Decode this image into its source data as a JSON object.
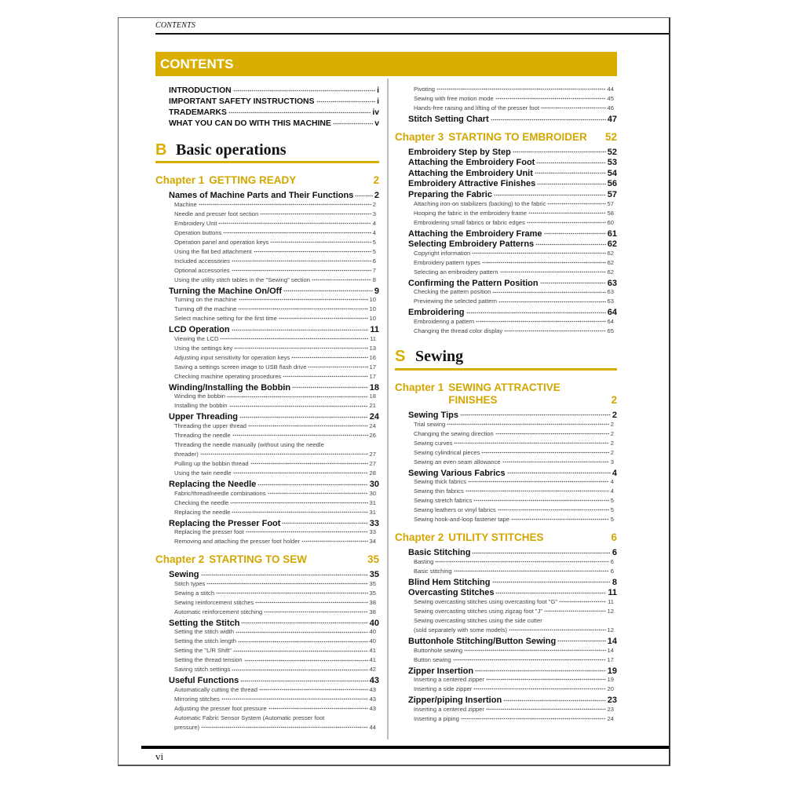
{
  "running_header": "CONTENTS",
  "banner_title": "CONTENTS",
  "folio": "vi",
  "colors": {
    "accent": "#d9ae00",
    "chapter": "#d4a600",
    "text": "#111111"
  },
  "left_column": [
    {
      "type": "front",
      "text": "INTRODUCTION",
      "page": "i"
    },
    {
      "type": "front",
      "text": "IMPORTANT SAFETY INSTRUCTIONS",
      "page": "i"
    },
    {
      "type": "front",
      "text": "TRADEMARKS",
      "page": "iv"
    },
    {
      "type": "front",
      "text": "WHAT YOU CAN DO WITH THIS MACHINE",
      "page": "v"
    },
    {
      "type": "section",
      "letter": "B",
      "title": "Basic operations"
    },
    {
      "type": "chapter",
      "label": "Chapter 1",
      "title": [
        "GETTING READY"
      ],
      "page": "2"
    },
    {
      "type": "main",
      "text": "Names of Machine Parts and Their Functions",
      "page": "2"
    },
    {
      "type": "sub",
      "text": "Machine",
      "page": "2"
    },
    {
      "type": "sub",
      "text": "Needle and presser foot section",
      "page": "3"
    },
    {
      "type": "sub",
      "text": "Embroidery Unit",
      "page": "4"
    },
    {
      "type": "sub",
      "text": "Operation buttons",
      "page": "4"
    },
    {
      "type": "sub",
      "text": "Operation panel and operation keys",
      "page": "5"
    },
    {
      "type": "sub",
      "text": "Using the flat bed attachment",
      "page": "5"
    },
    {
      "type": "sub",
      "text": "Included accessories",
      "page": "6"
    },
    {
      "type": "sub",
      "text": "Optional accessories",
      "page": "7"
    },
    {
      "type": "sub",
      "text": "Using the utility stitch tables in the \"Sewing\" section",
      "page": "8"
    },
    {
      "type": "main",
      "text": "Turning the Machine On/Off",
      "page": "9"
    },
    {
      "type": "sub",
      "text": "Turning on the machine",
      "page": "10"
    },
    {
      "type": "sub",
      "text": "Turning off the machine",
      "page": "10"
    },
    {
      "type": "sub",
      "text": "Select machine setting for the first time",
      "page": "10"
    },
    {
      "type": "main",
      "text": "LCD Operation",
      "page": "11"
    },
    {
      "type": "sub",
      "text": "Viewing the LCD",
      "page": "11"
    },
    {
      "type": "sub",
      "text": "Using the settings key",
      "page": "13"
    },
    {
      "type": "sub",
      "text": "Adjusting input sensitivity for operation keys",
      "page": "16"
    },
    {
      "type": "sub",
      "text": "Saving a settings screen image to USB flash drive",
      "page": "17"
    },
    {
      "type": "sub",
      "text": "Checking machine operating procedures",
      "page": "17"
    },
    {
      "type": "main",
      "text": "Winding/Installing the Bobbin",
      "page": "18"
    },
    {
      "type": "sub",
      "text": "Winding the bobbin",
      "page": "18"
    },
    {
      "type": "sub",
      "text": "Installing the bobbin",
      "page": "21"
    },
    {
      "type": "main",
      "text": "Upper Threading",
      "page": "24"
    },
    {
      "type": "sub",
      "text": "Threading the upper thread",
      "page": "24"
    },
    {
      "type": "sub",
      "text": "Threading the needle",
      "page": "26"
    },
    {
      "type": "sub",
      "text": "Threading the needle manually (without using the needle",
      "cont": "threader)",
      "page": "27"
    },
    {
      "type": "sub",
      "text": "Pulling up the bobbin thread",
      "page": "27"
    },
    {
      "type": "sub",
      "text": "Using the twin needle",
      "page": "28"
    },
    {
      "type": "main",
      "text": "Replacing the Needle",
      "page": "30"
    },
    {
      "type": "sub",
      "text": "Fabric/thread/needle combinations",
      "page": "30"
    },
    {
      "type": "sub",
      "text": "Checking the needle",
      "page": "31"
    },
    {
      "type": "sub",
      "text": "Replacing the needle",
      "page": "31"
    },
    {
      "type": "main",
      "text": "Replacing the Presser Foot",
      "page": "33"
    },
    {
      "type": "sub",
      "text": "Replacing the presser foot",
      "page": "33"
    },
    {
      "type": "sub",
      "text": "Removing and attaching the presser foot holder",
      "page": "34"
    },
    {
      "type": "chapter",
      "label": "Chapter 2",
      "title": [
        "STARTING TO SEW"
      ],
      "page": "35"
    },
    {
      "type": "main",
      "text": "Sewing",
      "page": "35"
    },
    {
      "type": "sub",
      "text": "Stitch types",
      "page": "35"
    },
    {
      "type": "sub",
      "text": "Sewing a stitch",
      "page": "35"
    },
    {
      "type": "sub",
      "text": "Sewing reinforcement stitches",
      "page": "38"
    },
    {
      "type": "sub",
      "text": "Automatic reinforcement stitching",
      "page": "38"
    },
    {
      "type": "main",
      "text": "Setting the Stitch",
      "page": "40"
    },
    {
      "type": "sub",
      "text": "Setting the stitch width",
      "page": "40"
    },
    {
      "type": "sub",
      "text": "Setting the stitch length",
      "page": "40"
    },
    {
      "type": "sub",
      "text": "Setting the \"L/R Shift\"",
      "page": "41"
    },
    {
      "type": "sub",
      "text": "Setting the thread tension",
      "page": "41"
    },
    {
      "type": "sub",
      "text": "Saving stitch settings",
      "page": "42"
    },
    {
      "type": "main",
      "text": "Useful Functions",
      "page": "43"
    },
    {
      "type": "sub",
      "text": "Automatically cutting the thread",
      "page": "43"
    },
    {
      "type": "sub",
      "text": "Mirroring stitches",
      "page": "43"
    },
    {
      "type": "sub",
      "text": "Adjusting the presser foot pressure",
      "page": "43"
    },
    {
      "type": "sub",
      "text": "Automatic Fabric Sensor System (Automatic presser foot",
      "cont": "pressure)",
      "page": "44"
    }
  ],
  "right_column": [
    {
      "type": "sub",
      "text": "Pivoting",
      "page": "44"
    },
    {
      "type": "sub",
      "text": "Sewing with free motion mode",
      "page": "45"
    },
    {
      "type": "sub",
      "text": "Hands-free raising and lifting of the presser foot",
      "page": "46"
    },
    {
      "type": "main",
      "text": "Stitch Setting Chart",
      "page": "47"
    },
    {
      "type": "chapter",
      "label": "Chapter 3",
      "title": [
        "STARTING TO EMBROIDER"
      ],
      "page": "52"
    },
    {
      "type": "main",
      "text": "Embroidery Step by Step",
      "page": "52"
    },
    {
      "type": "main",
      "text": "Attaching the Embroidery Foot",
      "page": "53"
    },
    {
      "type": "main",
      "text": "Attaching the Embroidery Unit",
      "page": "54"
    },
    {
      "type": "main",
      "text": "Embroidery Attractive Finishes",
      "page": "56"
    },
    {
      "type": "main",
      "text": "Preparing the Fabric",
      "page": "57"
    },
    {
      "type": "sub",
      "text": "Attaching iron-on stabilizers (backing) to the fabric",
      "page": "57"
    },
    {
      "type": "sub",
      "text": "Hooping the fabric in the embroidery frame",
      "page": "58"
    },
    {
      "type": "sub",
      "text": "Embroidering small fabrics or fabric edges",
      "page": "60"
    },
    {
      "type": "main",
      "text": "Attaching the Embroidery Frame",
      "page": "61"
    },
    {
      "type": "main",
      "text": "Selecting Embroidery Patterns",
      "page": "62"
    },
    {
      "type": "sub",
      "text": "Copyright information",
      "page": "62"
    },
    {
      "type": "sub",
      "text": "Embroidery pattern types",
      "page": "62"
    },
    {
      "type": "sub",
      "text": "Selecting an embroidery pattern",
      "page": "62"
    },
    {
      "type": "main",
      "text": "Confirming the Pattern Position",
      "page": "63"
    },
    {
      "type": "sub",
      "text": "Checking the pattern position",
      "page": "63"
    },
    {
      "type": "sub",
      "text": "Previewing the selected pattern",
      "page": "63"
    },
    {
      "type": "main",
      "text": "Embroidering",
      "page": "64"
    },
    {
      "type": "sub",
      "text": "Embroidering a pattern",
      "page": "64"
    },
    {
      "type": "sub",
      "text": "Changing the thread color display",
      "page": "65"
    },
    {
      "type": "section",
      "letter": "S",
      "title": "Sewing"
    },
    {
      "type": "chapter",
      "label": "Chapter 1",
      "title": [
        "SEWING ATTRACTIVE",
        "FINISHES"
      ],
      "page": "2"
    },
    {
      "type": "main",
      "text": "Sewing Tips",
      "page": "2"
    },
    {
      "type": "sub",
      "text": "Trial sewing",
      "page": "2"
    },
    {
      "type": "sub",
      "text": "Changing the sewing direction",
      "page": "2"
    },
    {
      "type": "sub",
      "text": "Sewing curves",
      "page": "2"
    },
    {
      "type": "sub",
      "text": "Sewing cylindrical pieces",
      "page": "2"
    },
    {
      "type": "sub",
      "text": "Sewing an even seam allowance",
      "page": "3"
    },
    {
      "type": "main",
      "text": "Sewing Various Fabrics",
      "page": "4"
    },
    {
      "type": "sub",
      "text": "Sewing thick fabrics",
      "page": "4"
    },
    {
      "type": "sub",
      "text": "Sewing thin fabrics",
      "page": "4"
    },
    {
      "type": "sub",
      "text": "Sewing stretch fabrics",
      "page": "5"
    },
    {
      "type": "sub",
      "text": "Sewing leathers or vinyl fabrics",
      "page": "5"
    },
    {
      "type": "sub",
      "text": "Sewing hook-and-loop fastener tape",
      "page": "5"
    },
    {
      "type": "chapter",
      "label": "Chapter 2",
      "title": [
        "UTILITY STITCHES"
      ],
      "page": "6"
    },
    {
      "type": "main",
      "text": "Basic Stitching",
      "page": "6"
    },
    {
      "type": "sub",
      "text": "Basting",
      "page": "6"
    },
    {
      "type": "sub",
      "text": "Basic stitching",
      "page": "6"
    },
    {
      "type": "main",
      "text": "Blind Hem Stitching",
      "page": "8"
    },
    {
      "type": "main",
      "text": "Overcasting Stitches",
      "page": "11"
    },
    {
      "type": "sub",
      "text": "Sewing overcasting stitches using overcasting foot \"G\"",
      "page": "11"
    },
    {
      "type": "sub",
      "text": "Sewing overcasting stitches using zigzag foot \"J\"",
      "page": "12"
    },
    {
      "type": "sub",
      "text": "Sewing overcasting stitches using the side cutter",
      "cont": "(sold separately with some models)",
      "page": "12"
    },
    {
      "type": "main",
      "text": "Buttonhole Stitching/Button Sewing",
      "page": "14"
    },
    {
      "type": "sub",
      "text": "Buttonhole sewing",
      "page": "14"
    },
    {
      "type": "sub",
      "text": "Button sewing",
      "page": "17"
    },
    {
      "type": "main",
      "text": "Zipper Insertion",
      "page": "19"
    },
    {
      "type": "sub",
      "text": "Inserting a centered zipper",
      "page": "19"
    },
    {
      "type": "sub",
      "text": "Inserting a side zipper",
      "page": "20"
    },
    {
      "type": "main",
      "text": "Zipper/piping Insertion",
      "page": "23"
    },
    {
      "type": "sub",
      "text": "Inserting a centered zipper",
      "page": "23"
    },
    {
      "type": "sub",
      "text": "Inserting a piping",
      "page": "24"
    }
  ]
}
